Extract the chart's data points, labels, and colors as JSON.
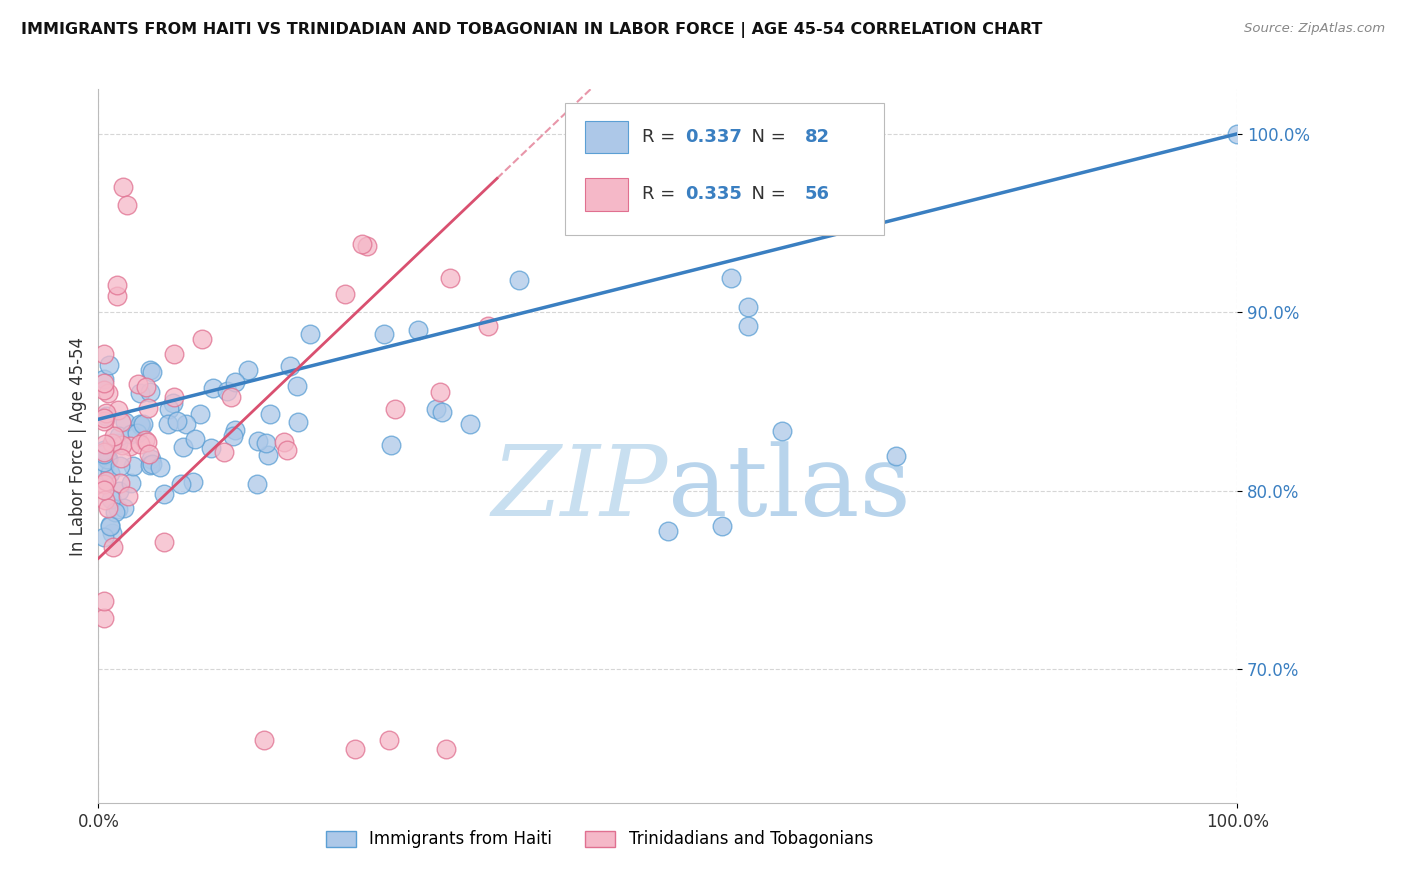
{
  "title": "IMMIGRANTS FROM HAITI VS TRINIDADIAN AND TOBAGONIAN IN LABOR FORCE | AGE 45-54 CORRELATION CHART",
  "source": "Source: ZipAtlas.com",
  "ylabel": "In Labor Force | Age 45-54",
  "legend_label1": "Immigrants from Haiti",
  "legend_label2": "Trinidadians and Tobagonians",
  "R1": 0.337,
  "N1": 82,
  "R2": 0.335,
  "N2": 56,
  "haiti_color": "#adc8e8",
  "haiti_edge": "#5b9fd4",
  "tt_color": "#f5b8c8",
  "tt_edge": "#e07090",
  "line_haiti": "#3a7fc1",
  "line_tt": "#d95070",
  "background": "#ffffff",
  "grid_color": "#cccccc",
  "xlim": [
    0.0,
    1.0
  ],
  "ylim": [
    0.625,
    1.025
  ],
  "y_ticks": [
    0.7,
    0.8,
    0.9,
    1.0
  ],
  "y_tick_labels": [
    "70.0%",
    "80.0%",
    "90.0%",
    "100.0%"
  ],
  "x_ticks": [
    0.0,
    1.0
  ],
  "x_tick_labels": [
    "0.0%",
    "100.0%"
  ],
  "tick_color": "#3a7fc1",
  "watermark_zip_color": "#c8dff0",
  "watermark_atlas_color": "#b8d4ec"
}
